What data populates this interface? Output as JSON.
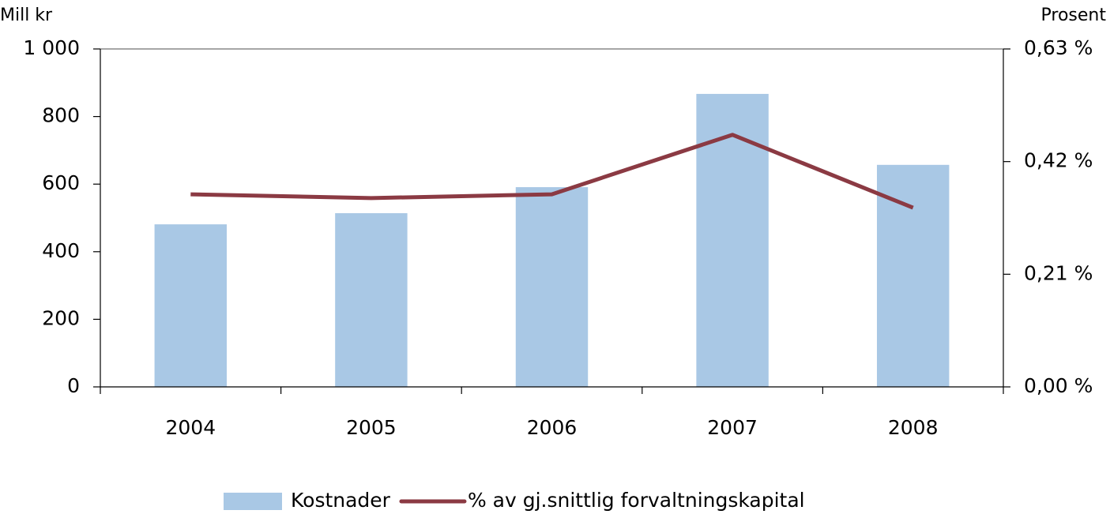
{
  "chart_data": {
    "type": "bar",
    "y_label": "Mill kr",
    "y2_label": "Prosent",
    "categories": [
      "2004",
      "2005",
      "2006",
      "2007",
      "2008"
    ],
    "series": [
      {
        "name": "Kostnader",
        "type": "bar",
        "color": "#a9c8e5",
        "values": [
          481,
          514,
          591,
          867,
          657
        ]
      },
      {
        "name": "% av gj.snittlig forvaltningskapital",
        "type": "line",
        "axis": "y2",
        "color": "#8b3a43",
        "values": [
          0.359,
          0.352,
          0.359,
          0.47,
          0.334
        ]
      }
    ],
    "ylim": [
      0,
      1000
    ],
    "yticks": [
      0,
      200,
      400,
      600,
      800,
      {
        "value": 1000,
        "label": "1 000"
      }
    ],
    "y2lim": [
      0,
      0.63
    ],
    "y2ticks": [
      {
        "value": 0,
        "label": "0,00 %"
      },
      {
        "value": 0.21,
        "label": "0,21 %"
      },
      {
        "value": 0.42,
        "label": "0,42 %"
      },
      {
        "value": 0.63,
        "label": "0,63 %"
      }
    ],
    "grid": false,
    "legend": "bottom"
  }
}
